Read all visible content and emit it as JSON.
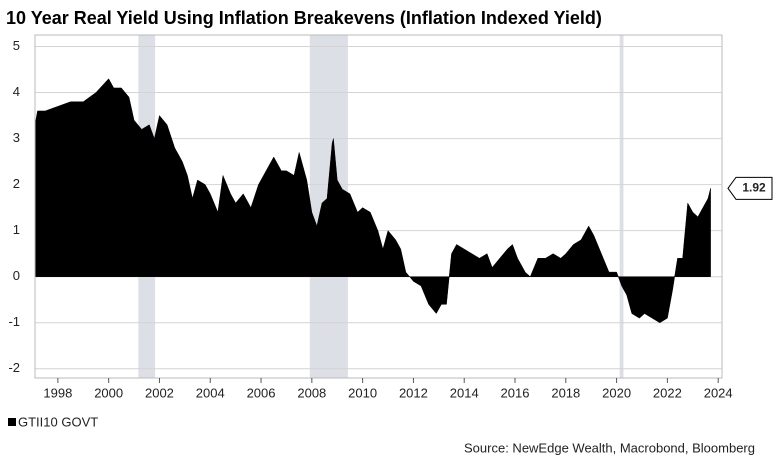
{
  "chart_data": {
    "type": "area",
    "title": "10 Year Real Yield Using Inflation Breakevens (Inflation Indexed Yield)",
    "source": "Source: NewEdge Wealth, Macrobond, Bloomberg",
    "xlim": [
      1997.1,
      2024.15
    ],
    "ylim": [
      -2.2,
      5.25
    ],
    "xticks": [
      1998,
      2000,
      2002,
      2004,
      2006,
      2008,
      2010,
      2012,
      2014,
      2016,
      2018,
      2020,
      2022,
      2024
    ],
    "yticks": [
      -2,
      -1,
      0,
      1,
      2,
      3,
      4,
      5
    ],
    "grid": true,
    "recessions": [
      [
        2001.17,
        2001.83
      ],
      [
        2007.92,
        2009.42
      ],
      [
        2020.12,
        2020.27
      ]
    ],
    "recession_color": "#dcdfe6",
    "series": [
      {
        "name": "GTII10 GOVT",
        "color": "#000000",
        "x": [
          1997.1,
          1997.2,
          1997.5,
          1998,
          1998.5,
          1999,
          1999.5,
          2000,
          2000.2,
          2000.5,
          2000.8,
          2001,
          2001.3,
          2001.6,
          2001.8,
          2002,
          2002.3,
          2002.6,
          2002.9,
          2003.1,
          2003.3,
          2003.5,
          2003.8,
          2004,
          2004.3,
          2004.5,
          2004.8,
          2005,
          2005.3,
          2005.6,
          2005.9,
          2006.2,
          2006.5,
          2006.8,
          2007,
          2007.3,
          2007.5,
          2007.8,
          2008,
          2008.2,
          2008.4,
          2008.6,
          2008.8,
          2008.85,
          2009,
          2009.2,
          2009.5,
          2009.8,
          2010,
          2010.3,
          2010.6,
          2010.8,
          2011,
          2011.3,
          2011.5,
          2011.7,
          2012,
          2012.3,
          2012.6,
          2012.9,
          2013.1,
          2013.3,
          2013.5,
          2013.7,
          2014,
          2014.3,
          2014.6,
          2014.9,
          2015.1,
          2015.4,
          2015.7,
          2015.9,
          2016.1,
          2016.4,
          2016.6,
          2016.9,
          2017.2,
          2017.5,
          2017.8,
          2018,
          2018.3,
          2018.6,
          2018.9,
          2019.1,
          2019.4,
          2019.7,
          2020,
          2020.2,
          2020.4,
          2020.6,
          2020.9,
          2021.1,
          2021.4,
          2021.7,
          2022,
          2022.2,
          2022.4,
          2022.6,
          2022.8,
          2023,
          2023.2,
          2023.4,
          2023.6,
          2023.7
        ],
        "values": [
          3.3,
          3.6,
          3.6,
          3.7,
          3.8,
          3.8,
          4.0,
          4.3,
          4.1,
          4.1,
          3.9,
          3.4,
          3.2,
          3.3,
          3.0,
          3.5,
          3.3,
          2.8,
          2.5,
          2.2,
          1.7,
          2.1,
          2.0,
          1.8,
          1.4,
          2.2,
          1.8,
          1.6,
          1.8,
          1.5,
          2.0,
          2.3,
          2.6,
          2.3,
          2.3,
          2.2,
          2.7,
          2.1,
          1.4,
          1.1,
          1.6,
          1.7,
          2.9,
          3.0,
          2.1,
          1.9,
          1.8,
          1.4,
          1.5,
          1.4,
          1.0,
          0.6,
          1.0,
          0.8,
          0.6,
          0.1,
          -0.1,
          -0.2,
          -0.6,
          -0.8,
          -0.6,
          -0.6,
          0.5,
          0.7,
          0.6,
          0.5,
          0.4,
          0.5,
          0.2,
          0.4,
          0.6,
          0.7,
          0.4,
          0.1,
          0.0,
          0.4,
          0.4,
          0.5,
          0.4,
          0.5,
          0.7,
          0.8,
          1.1,
          0.9,
          0.5,
          0.1,
          0.1,
          -0.2,
          -0.4,
          -0.8,
          -0.9,
          -0.8,
          -0.9,
          -1.0,
          -0.9,
          -0.3,
          0.4,
          0.4,
          1.6,
          1.4,
          1.3,
          1.5,
          1.7,
          1.92
        ]
      }
    ]
  }
}
